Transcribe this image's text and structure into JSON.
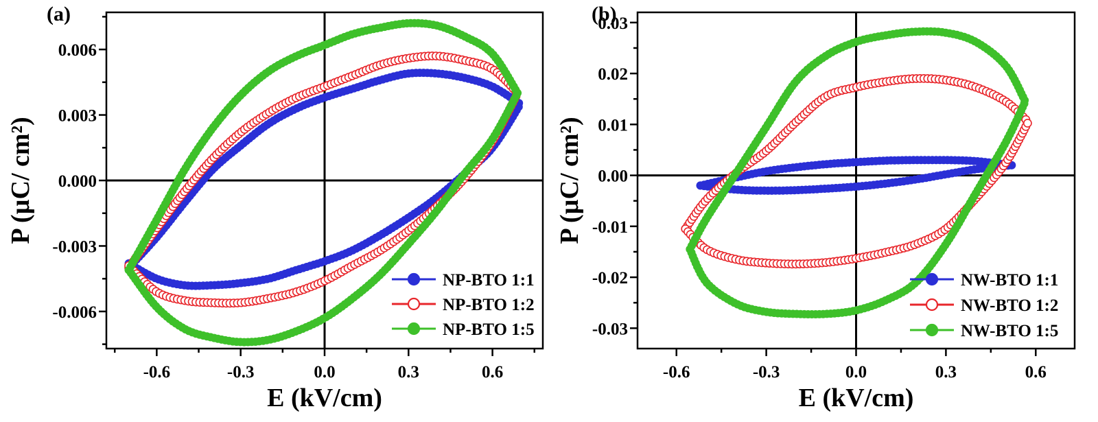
{
  "chart_data": [
    {
      "type": "scatter",
      "panel_label": "(a)",
      "xlabel": "E (kV/cm)",
      "ylabel": "P (µC/ cm²)",
      "xlim": [
        -0.78,
        0.78
      ],
      "ylim": [
        -0.0077,
        0.0077
      ],
      "xticks": [
        -0.6,
        -0.3,
        0.0,
        0.3,
        0.6
      ],
      "xtick_labels": [
        "-0.6",
        "-0.3",
        "0.0",
        "0.3",
        "0.6"
      ],
      "yticks": [
        -0.006,
        -0.003,
        0.0,
        0.003,
        0.006
      ],
      "ytick_labels": [
        "-0.006",
        "-0.003",
        "0.000",
        "0.003",
        "0.006"
      ],
      "grid": false,
      "legend_position": "bottom-right",
      "series": [
        {
          "name": "NP-BTO 1:1",
          "marker": "filled-circle",
          "color": "#2a2fd6",
          "upper": {
            "x": [
              -0.7,
              -0.6,
              -0.5,
              -0.4,
              -0.3,
              -0.2,
              -0.1,
              0.0,
              0.1,
              0.2,
              0.3,
              0.4,
              0.5,
              0.6,
              0.7
            ],
            "y": [
              -0.004,
              -0.0026,
              -0.001,
              0.0005,
              0.0016,
              0.0026,
              0.0033,
              0.0038,
              0.0042,
              0.0046,
              0.0049,
              0.0049,
              0.0047,
              0.0043,
              0.0035
            ]
          },
          "lower": {
            "x": [
              -0.7,
              -0.6,
              -0.5,
              -0.4,
              -0.3,
              -0.2,
              -0.1,
              0.0,
              0.1,
              0.2,
              0.3,
              0.4,
              0.5,
              0.6,
              0.7
            ],
            "y": [
              -0.0038,
              -0.0045,
              -0.0048,
              -0.0048,
              -0.0047,
              -0.0045,
              -0.0041,
              -0.0037,
              -0.0032,
              -0.0025,
              -0.0017,
              -0.0008,
              0.0003,
              0.0015,
              0.0035
            ]
          }
        },
        {
          "name": "NP-BTO 1:2",
          "marker": "open-circle",
          "color": "#e8262b",
          "upper": {
            "x": [
              -0.7,
              -0.6,
              -0.5,
              -0.4,
              -0.3,
              -0.2,
              -0.1,
              0.0,
              0.1,
              0.2,
              0.3,
              0.4,
              0.5,
              0.6,
              0.69
            ],
            "y": [
              -0.004,
              -0.0022,
              -0.0005,
              0.001,
              0.0022,
              0.0031,
              0.0038,
              0.0043,
              0.0048,
              0.0053,
              0.0056,
              0.0057,
              0.0055,
              0.0051,
              0.004
            ]
          },
          "lower": {
            "x": [
              -0.7,
              -0.6,
              -0.5,
              -0.4,
              -0.3,
              -0.2,
              -0.1,
              0.0,
              0.1,
              0.2,
              0.3,
              0.4,
              0.5,
              0.6,
              0.69
            ],
            "y": [
              -0.0039,
              -0.0051,
              -0.0055,
              -0.0056,
              -0.0056,
              -0.0054,
              -0.0051,
              -0.0046,
              -0.0039,
              -0.0032,
              -0.0023,
              -0.0012,
              0.0001,
              0.0018,
              0.004
            ]
          }
        },
        {
          "name": "NP-BTO 1:5",
          "marker": "filled-circle",
          "color": "#3ec02a",
          "upper": {
            "x": [
              -0.7,
              -0.6,
              -0.5,
              -0.4,
              -0.3,
              -0.2,
              -0.1,
              0.0,
              0.1,
              0.2,
              0.3,
              0.4,
              0.5,
              0.6,
              0.69
            ],
            "y": [
              -0.0041,
              -0.0018,
              0.0005,
              0.0024,
              0.0039,
              0.005,
              0.0057,
              0.0062,
              0.0067,
              0.007,
              0.0072,
              0.0071,
              0.0066,
              0.0058,
              0.004
            ]
          },
          "lower": {
            "x": [
              -0.7,
              -0.6,
              -0.5,
              -0.4,
              -0.3,
              -0.2,
              -0.1,
              0.0,
              0.1,
              0.2,
              0.3,
              0.4,
              0.5,
              0.6,
              0.69
            ],
            "y": [
              -0.0041,
              -0.0058,
              -0.0068,
              -0.0072,
              -0.0074,
              -0.0073,
              -0.0069,
              -0.0063,
              -0.0054,
              -0.0043,
              -0.0029,
              -0.0014,
              0.0003,
              0.0019,
              0.004
            ]
          }
        }
      ]
    },
    {
      "type": "scatter",
      "panel_label": "(b)",
      "xlabel": "E (kV/cm)",
      "ylabel": "P (µC/ cm²)",
      "xlim": [
        -0.73,
        0.73
      ],
      "ylim": [
        -0.034,
        0.032
      ],
      "xticks": [
        -0.6,
        -0.3,
        0.0,
        0.3,
        0.6
      ],
      "xtick_labels": [
        "-0.6",
        "-0.3",
        "0.0",
        "0.3",
        "0.6"
      ],
      "yticks": [
        -0.03,
        -0.02,
        -0.01,
        0.0,
        0.01,
        0.02,
        0.03
      ],
      "ytick_labels": [
        "-0.03",
        "-0.02",
        "-0.01",
        "0.00",
        "0.01",
        "0.02",
        "0.03"
      ],
      "grid": false,
      "legend_position": "bottom-right",
      "series": [
        {
          "name": "NW-BTO 1:1",
          "marker": "filled-circle",
          "color": "#2a2fd6",
          "upper": {
            "x": [
              -0.52,
              -0.4,
              -0.3,
              -0.2,
              -0.1,
              0.0,
              0.1,
              0.2,
              0.3,
              0.4,
              0.52
            ],
            "y": [
              -0.002,
              -0.0004,
              0.0008,
              0.0016,
              0.0022,
              0.0026,
              0.0029,
              0.003,
              0.003,
              0.0028,
              0.002
            ]
          },
          "lower": {
            "x": [
              -0.52,
              -0.4,
              -0.3,
              -0.2,
              -0.1,
              0.0,
              0.1,
              0.2,
              0.3,
              0.4,
              0.52
            ],
            "y": [
              -0.002,
              -0.0028,
              -0.003,
              -0.0029,
              -0.0026,
              -0.0022,
              -0.0016,
              -0.0008,
              0.0002,
              0.0012,
              0.002
            ]
          }
        },
        {
          "name": "NW-BTO 1:2",
          "marker": "open-circle",
          "color": "#e8262b",
          "upper": {
            "x": [
              -0.57,
              -0.5,
              -0.4,
              -0.3,
              -0.2,
              -0.1,
              0.0,
              0.1,
              0.2,
              0.3,
              0.4,
              0.5,
              0.575
            ],
            "y": [
              -0.0105,
              -0.0048,
              0.0005,
              0.0048,
              0.0105,
              0.0155,
              0.0173,
              0.0184,
              0.019,
              0.0187,
              0.0173,
              0.0145,
              0.0105
            ]
          },
          "lower": {
            "x": [
              -0.57,
              -0.5,
              -0.4,
              -0.3,
              -0.2,
              -0.1,
              0.0,
              0.1,
              0.2,
              0.3,
              0.4,
              0.5,
              0.575
            ],
            "y": [
              -0.0105,
              -0.0145,
              -0.0165,
              -0.0172,
              -0.0174,
              -0.0171,
              -0.0163,
              -0.0151,
              -0.0135,
              -0.0105,
              -0.0045,
              0.0025,
              0.0105
            ]
          }
        },
        {
          "name": "NW-BTO 1:5",
          "marker": "filled-circle",
          "color": "#3ec02a",
          "upper": {
            "x": [
              -0.555,
              -0.5,
              -0.4,
              -0.3,
              -0.2,
              -0.1,
              0.0,
              0.1,
              0.2,
              0.3,
              0.4,
              0.5,
              0.565
            ],
            "y": [
              -0.0145,
              -0.0085,
              0.0005,
              0.0095,
              0.0185,
              0.0235,
              0.0262,
              0.0275,
              0.0282,
              0.028,
              0.0262,
              0.0215,
              0.0145
            ]
          },
          "lower": {
            "x": [
              -0.555,
              -0.5,
              -0.4,
              -0.3,
              -0.2,
              -0.1,
              0.0,
              0.1,
              0.2,
              0.3,
              0.4,
              0.5,
              0.565
            ],
            "y": [
              -0.0145,
              -0.021,
              -0.0252,
              -0.0268,
              -0.0272,
              -0.0272,
              -0.0265,
              -0.0245,
              -0.021,
              -0.0135,
              -0.0035,
              0.0065,
              0.0145
            ]
          }
        }
      ]
    }
  ]
}
